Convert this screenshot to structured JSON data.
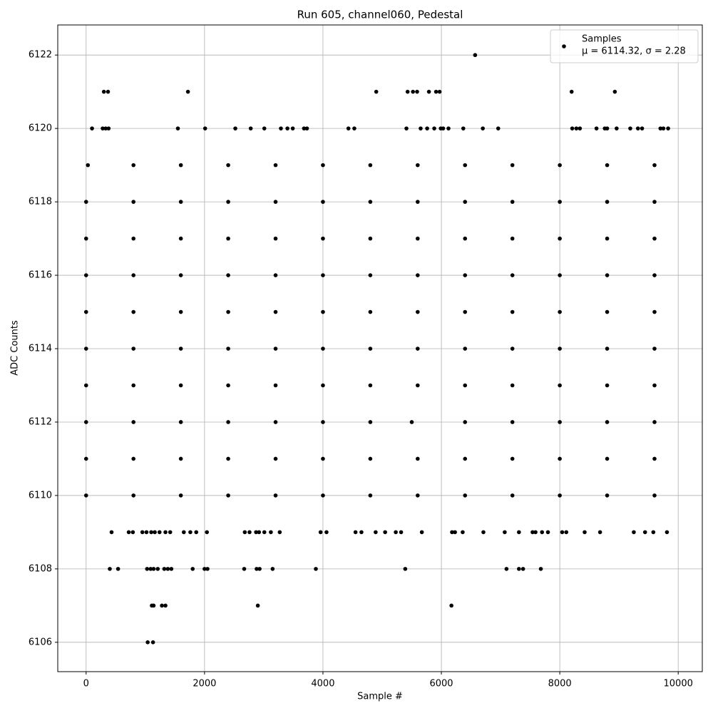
{
  "chart_data": {
    "type": "scatter",
    "title": "Run 605, channel060, Pedestal",
    "x_label": "Sample #",
    "y_label": "ADC Counts",
    "xlim": [
      -479,
      10407
    ],
    "ylim": [
      6105.2,
      6122.82
    ],
    "xticks": [
      0,
      2000,
      4000,
      6000,
      8000,
      10000
    ],
    "yticks": [
      6106,
      6108,
      6110,
      6112,
      6114,
      6116,
      6118,
      6120,
      6122
    ],
    "grid": true,
    "legend": "upper right",
    "series": [
      {
        "name": "Samples",
        "stats": "μ = 6114.32, σ = 2.28",
        "color": "#000000",
        "x": [
          6570,
          300,
          370,
          1720,
          4900,
          5430,
          5520,
          5590,
          5790,
          5910,
          5970,
          8200,
          8930,
          100,
          280,
          330,
          380,
          1550,
          2010,
          2520,
          2780,
          3010,
          3290,
          3400,
          3490,
          3680,
          3730,
          4430,
          4530,
          5410,
          5650,
          5760,
          5880,
          5990,
          6030,
          6120,
          6370,
          6700,
          6960,
          8210,
          8280,
          8340,
          8620,
          8760,
          8800,
          8960,
          9190,
          9320,
          9390,
          9700,
          9750,
          9830,
          430,
          720,
          790,
          950,
          1020,
          1100,
          1160,
          1240,
          1340,
          1420,
          1650,
          1760,
          1860,
          2040,
          2680,
          2760,
          2870,
          2920,
          3010,
          3120,
          3270,
          3960,
          4060,
          4550,
          4650,
          4890,
          5050,
          5230,
          5320,
          5670,
          6180,
          6230,
          6360,
          6710,
          7070,
          7310,
          7540,
          7590,
          7700,
          7800,
          8040,
          8110,
          8420,
          8680,
          9250,
          9440,
          9580,
          9810,
          400,
          540,
          1030,
          1090,
          1140,
          1210,
          1320,
          1380,
          1440,
          1800,
          2000,
          2050,
          2670,
          2880,
          2930,
          3150,
          3880,
          5390,
          7100,
          7310,
          7380,
          7680,
          1110,
          1140,
          1280,
          1340,
          2900,
          6170,
          1040,
          1130,
          0,
          800,
          1600,
          2400,
          3200,
          4000,
          4800,
          5600,
          6400,
          7200,
          8000,
          8800,
          9600,
          0,
          800,
          1600,
          2400,
          3200,
          4000,
          4800,
          5600,
          6400,
          7200,
          8000,
          8800,
          9600,
          0,
          800,
          1600,
          2400,
          3200,
          4000,
          4800,
          5500,
          6400,
          7200,
          8000,
          8800,
          9600,
          0,
          800,
          1600,
          2400,
          3200,
          4000,
          4800,
          5600,
          6400,
          7200,
          8000,
          8800,
          9600,
          0,
          800,
          1600,
          2400,
          3200,
          4000,
          4800,
          5600,
          6400,
          7200,
          8000,
          8800,
          9600,
          0,
          800,
          1600,
          2400,
          3200,
          4000,
          4800,
          5600,
          6400,
          7200,
          8000,
          8800,
          9600,
          0,
          800,
          1600,
          2400,
          3200,
          4000,
          4800,
          5600,
          6400,
          7200,
          8000,
          8800,
          9600,
          0,
          800,
          1600,
          2400,
          3200,
          4000,
          4800,
          5600,
          6400,
          7200,
          8000,
          8800,
          9600,
          0,
          800,
          1600,
          2400,
          3200,
          4000,
          4800,
          5600,
          6400,
          7200,
          8000,
          8800,
          9600,
          30,
          800,
          1600,
          2400,
          3200,
          4000,
          4800,
          5600,
          6400,
          7200,
          8000,
          8800,
          9600
        ],
        "values": [
          6122,
          6121,
          6121,
          6121,
          6121,
          6121,
          6121,
          6121,
          6121,
          6121,
          6121,
          6121,
          6121,
          6120,
          6120,
          6120,
          6120,
          6120,
          6120,
          6120,
          6120,
          6120,
          6120,
          6120,
          6120,
          6120,
          6120,
          6120,
          6120,
          6120,
          6120,
          6120,
          6120,
          6120,
          6120,
          6120,
          6120,
          6120,
          6120,
          6120,
          6120,
          6120,
          6120,
          6120,
          6120,
          6120,
          6120,
          6120,
          6120,
          6120,
          6120,
          6120,
          6109,
          6109,
          6109,
          6109,
          6109,
          6109,
          6109,
          6109,
          6109,
          6109,
          6109,
          6109,
          6109,
          6109,
          6109,
          6109,
          6109,
          6109,
          6109,
          6109,
          6109,
          6109,
          6109,
          6109,
          6109,
          6109,
          6109,
          6109,
          6109,
          6109,
          6109,
          6109,
          6109,
          6109,
          6109,
          6109,
          6109,
          6109,
          6109,
          6109,
          6109,
          6109,
          6109,
          6109,
          6109,
          6109,
          6109,
          6109,
          6108,
          6108,
          6108,
          6108,
          6108,
          6108,
          6108,
          6108,
          6108,
          6108,
          6108,
          6108,
          6108,
          6108,
          6108,
          6108,
          6108,
          6108,
          6108,
          6108,
          6108,
          6108,
          6107,
          6107,
          6107,
          6107,
          6107,
          6107,
          6106,
          6106,
          6110,
          6110,
          6110,
          6110,
          6110,
          6110,
          6110,
          6110,
          6110,
          6110,
          6110,
          6110,
          6110,
          6111,
          6111,
          6111,
          6111,
          6111,
          6111,
          6111,
          6111,
          6111,
          6111,
          6111,
          6111,
          6111,
          6112,
          6112,
          6112,
          6112,
          6112,
          6112,
          6112,
          6112,
          6112,
          6112,
          6112,
          6112,
          6112,
          6113,
          6113,
          6113,
          6113,
          6113,
          6113,
          6113,
          6113,
          6113,
          6113,
          6113,
          6113,
          6113,
          6114,
          6114,
          6114,
          6114,
          6114,
          6114,
          6114,
          6114,
          6114,
          6114,
          6114,
          6114,
          6114,
          6115,
          6115,
          6115,
          6115,
          6115,
          6115,
          6115,
          6115,
          6115,
          6115,
          6115,
          6115,
          6115,
          6116,
          6116,
          6116,
          6116,
          6116,
          6116,
          6116,
          6116,
          6116,
          6116,
          6116,
          6116,
          6116,
          6117,
          6117,
          6117,
          6117,
          6117,
          6117,
          6117,
          6117,
          6117,
          6117,
          6117,
          6117,
          6117,
          6118,
          6118,
          6118,
          6118,
          6118,
          6118,
          6118,
          6118,
          6118,
          6118,
          6118,
          6118,
          6118,
          6119,
          6119,
          6119,
          6119,
          6119,
          6119,
          6119,
          6119,
          6119,
          6119,
          6119,
          6119,
          6119
        ]
      }
    ]
  }
}
